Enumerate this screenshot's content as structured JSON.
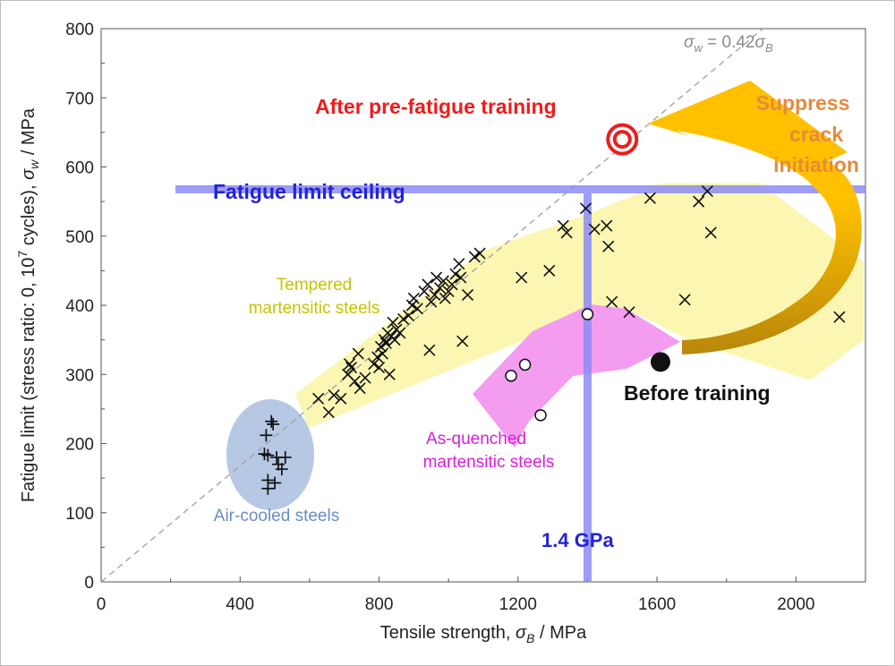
{
  "chart_data": {
    "type": "scatter",
    "xlabel": "Tensile strength, σ_B / MPa",
    "xlabel_parts": [
      "Tensile strength, ",
      "σ",
      "B",
      " / MPa"
    ],
    "ylabel": "Fatigue limit (stress ratio: 0, 10^7 cycles), σ_w / MPa",
    "ylabel_parts": [
      "Fatigue limit (stress ratio: 0, 10",
      "7",
      " cycles), ",
      "σ",
      "w",
      " / MPa"
    ],
    "xlim": [
      0,
      2200
    ],
    "ylim": [
      0,
      800
    ],
    "xticks": [
      0,
      400,
      800,
      1200,
      1600,
      2000
    ],
    "yticks": [
      0,
      100,
      200,
      300,
      400,
      500,
      600,
      700,
      800
    ],
    "grid": false,
    "reference_line": {
      "label_parts": [
        "σ",
        "w",
        " = 0.42",
        "σ",
        "B"
      ],
      "slope": 0.42,
      "color": "#9e9e9e"
    },
    "series": [
      {
        "name": "Tempered martensitic steels",
        "marker": "x",
        "points": [
          [
            625,
            265
          ],
          [
            655,
            245
          ],
          [
            670,
            270
          ],
          [
            690,
            265
          ],
          [
            710,
            300
          ],
          [
            715,
            315
          ],
          [
            720,
            310
          ],
          [
            730,
            290
          ],
          [
            740,
            330
          ],
          [
            745,
            280
          ],
          [
            760,
            295
          ],
          [
            785,
            315
          ],
          [
            795,
            325
          ],
          [
            800,
            310
          ],
          [
            805,
            340
          ],
          [
            810,
            330
          ],
          [
            815,
            350
          ],
          [
            820,
            345
          ],
          [
            825,
            360
          ],
          [
            830,
            300
          ],
          [
            835,
            355
          ],
          [
            840,
            375
          ],
          [
            845,
            350
          ],
          [
            850,
            365
          ],
          [
            860,
            360
          ],
          [
            870,
            380
          ],
          [
            885,
            385
          ],
          [
            895,
            400
          ],
          [
            900,
            410
          ],
          [
            910,
            395
          ],
          [
            930,
            420
          ],
          [
            940,
            430
          ],
          [
            945,
            335
          ],
          [
            950,
            405
          ],
          [
            960,
            415
          ],
          [
            965,
            440
          ],
          [
            975,
            425
          ],
          [
            985,
            435
          ],
          [
            990,
            410
          ],
          [
            1000,
            420
          ],
          [
            1010,
            430
          ],
          [
            1020,
            445
          ],
          [
            1030,
            460
          ],
          [
            1035,
            440
          ],
          [
            1040,
            348
          ],
          [
            1055,
            415
          ],
          [
            1075,
            470
          ],
          [
            1090,
            475
          ],
          [
            1210,
            440
          ],
          [
            1290,
            450
          ],
          [
            1330,
            515
          ],
          [
            1340,
            505
          ],
          [
            1395,
            540
          ],
          [
            1420,
            510
          ],
          [
            1455,
            515
          ],
          [
            1460,
            485
          ],
          [
            1470,
            405
          ],
          [
            1520,
            390
          ],
          [
            1580,
            555
          ],
          [
            1680,
            408
          ],
          [
            1720,
            550
          ],
          [
            1745,
            565
          ],
          [
            1755,
            505
          ],
          [
            2125,
            383
          ]
        ]
      },
      {
        "name": "As-quenched martensitic steels",
        "marker": "open-circle",
        "points": [
          [
            1180,
            298
          ],
          [
            1220,
            314
          ],
          [
            1265,
            241
          ],
          [
            1400,
            387
          ]
        ]
      },
      {
        "name": "Air-cooled steels",
        "marker": "plus",
        "points": [
          [
            475,
            212
          ],
          [
            490,
            232
          ],
          [
            495,
            228
          ],
          [
            470,
            185
          ],
          [
            480,
            183
          ],
          [
            505,
            180
          ],
          [
            510,
            170
          ],
          [
            530,
            180
          ],
          [
            520,
            163
          ],
          [
            480,
            147
          ],
          [
            500,
            143
          ],
          [
            480,
            135
          ]
        ]
      },
      {
        "name": "Before training",
        "marker": "filled-circle",
        "points": [
          [
            1610,
            318
          ]
        ]
      },
      {
        "name": "After pre-fatigue training",
        "marker": "target",
        "points": [
          [
            1500,
            640
          ]
        ]
      }
    ],
    "annotations": {
      "after_training": "After pre-fatigue training",
      "before_training": "Before training",
      "suppress": "Suppress",
      "crack": "crack",
      "initiation": "initiation",
      "ceiling": "Fatigue limit ceiling",
      "gpa": "1.4 GPa",
      "tempered_line1": "Tempered",
      "tempered_line2": "martensitic steels",
      "quenched_line1": "As-quenched",
      "quenched_line2": "martensitic steels",
      "aircooled": "Air-cooled steels"
    },
    "colors": {
      "after_training": "#ee1c1c",
      "suppress": "#e88a3a",
      "arrow_light": "#ffc000",
      "arrow_dark": "#c8940a",
      "ceiling_line": "#8c8cf5",
      "ceiling_text": "#2222dd",
      "tempered_region": "#fbf7b3",
      "tempered_text": "#c4c400",
      "quenched_region": "#f39cf0",
      "quenched_text": "#d81ed8",
      "aircooled_region": "#b7c8e4",
      "aircooled_text": "#6b8cc9"
    }
  }
}
